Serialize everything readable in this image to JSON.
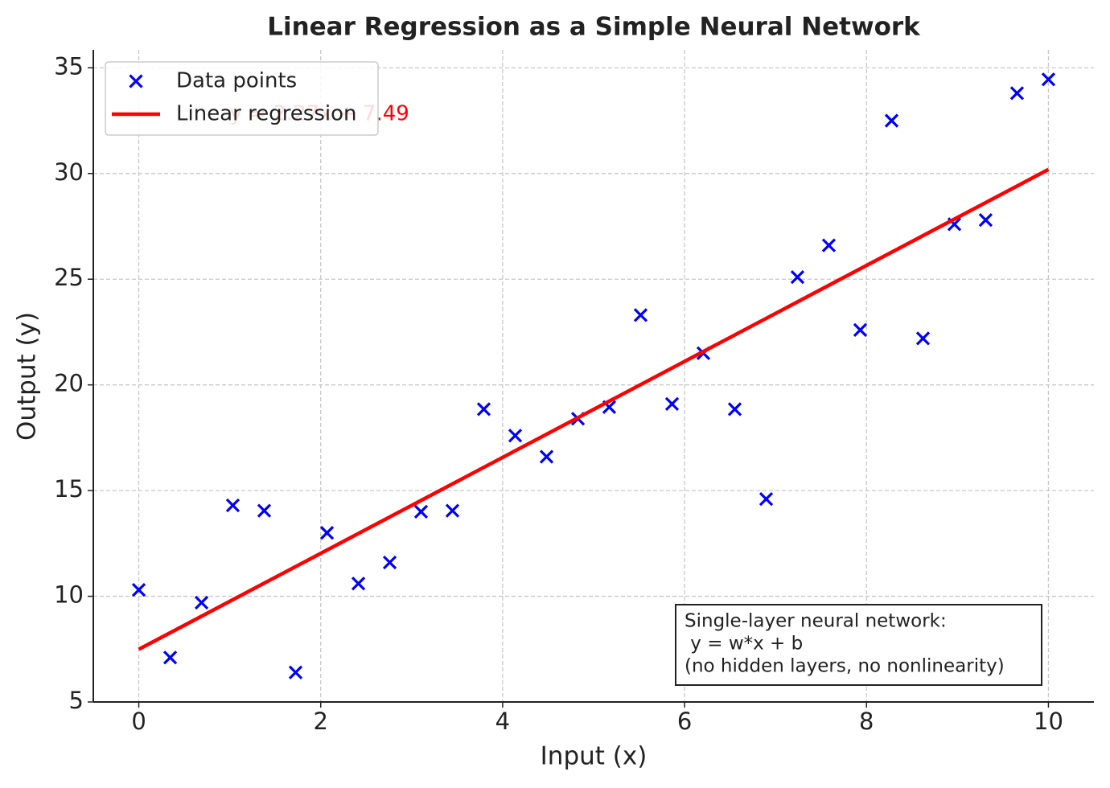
{
  "chart_data": {
    "type": "scatter",
    "title": "Linear Regression as a Simple Neural Network",
    "x_label": "Input (x)",
    "y_label": "Output (y)",
    "xlim": [
      -0.5,
      10.5
    ],
    "ylim": [
      5,
      35.85
    ],
    "xticks": [
      0,
      2,
      4,
      6,
      8,
      10
    ],
    "yticks": [
      5,
      10,
      15,
      20,
      25,
      30,
      35
    ],
    "grid": true,
    "legend": "upper left",
    "series": [
      {
        "name": "Data points",
        "type": "scatter",
        "marker": "x",
        "color": "#0000ff",
        "x": [
          0,
          0.345,
          0.69,
          1.034,
          1.379,
          1.724,
          2.069,
          2.414,
          2.759,
          3.103,
          3.448,
          3.793,
          4.138,
          4.483,
          4.828,
          5.172,
          5.517,
          5.862,
          6.207,
          6.552,
          6.897,
          7.241,
          7.586,
          7.931,
          8.276,
          8.621,
          8.966,
          9.31,
          9.655,
          10
        ],
        "values": [
          10.3,
          7.1,
          9.7,
          14.3,
          14.05,
          6.4,
          13.0,
          10.6,
          11.6,
          14.0,
          14.05,
          18.85,
          17.6,
          16.6,
          18.4,
          18.95,
          23.3,
          19.1,
          21.5,
          18.85,
          14.6,
          25.1,
          26.6,
          22.6,
          32.5,
          22.2,
          27.6,
          27.8,
          33.8,
          34.45
        ]
      },
      {
        "name": "Linear regression",
        "type": "line",
        "color": "#ff0000",
        "x": [
          0,
          10
        ],
        "values": [
          7.49,
          30.19
        ]
      }
    ],
    "annotations": [
      {
        "text": "y = 2.27x + 7.49",
        "color": "#ff0000"
      },
      {
        "lines": [
          "Single-layer neural network:",
          " y = w*x + b",
          "(no hidden layers, no nonlinearity)"
        ]
      }
    ]
  }
}
